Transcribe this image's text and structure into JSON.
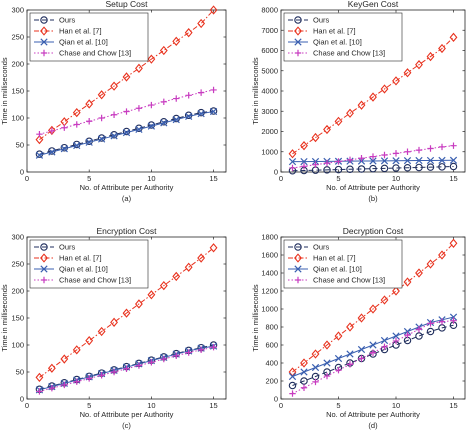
{
  "colors": {
    "Ours": "#1f2d5c",
    "Han et al. [7]": "#e8321e",
    "Qian et al. [10]": "#3a5fb0",
    "Chase and Chow [13]": "#c83cc0"
  },
  "chart_data": [
    {
      "type": "line",
      "title": "Setup Cost",
      "xlabel": "No. of Attribute per Authority",
      "ylabel": "Time in milliseconds",
      "caption": "(a)",
      "xlim": [
        0,
        16
      ],
      "ylim": [
        0,
        300
      ],
      "xticks": [
        0,
        5,
        10,
        15
      ],
      "yticks": [
        0,
        50,
        100,
        150,
        200,
        250,
        300
      ],
      "legend_position": "top-left",
      "x": [
        1,
        2,
        3,
        4,
        5,
        6,
        7,
        8,
        9,
        10,
        11,
        12,
        13,
        14,
        15
      ],
      "series": [
        {
          "name": "Ours",
          "values": [
            33,
            39,
            45,
            51,
            57,
            63,
            69,
            75,
            81,
            87,
            93,
            99,
            105,
            110,
            113
          ]
        },
        {
          "name": "Han et al. [7]",
          "values": [
            60,
            77,
            93,
            110,
            126,
            143,
            159,
            176,
            192,
            209,
            225,
            242,
            258,
            275,
            300
          ]
        },
        {
          "name": "Qian et al. [10]",
          "values": [
            31,
            37,
            43,
            49,
            55,
            61,
            67,
            73,
            79,
            85,
            91,
            97,
            103,
            108,
            112
          ]
        },
        {
          "name": "Chase and Chow [13]",
          "values": [
            70,
            76,
            82,
            88,
            94,
            100,
            106,
            112,
            118,
            124,
            130,
            136,
            142,
            147,
            152
          ]
        }
      ]
    },
    {
      "type": "line",
      "title": "KeyGen Cost",
      "xlabel": "No. of Attribute per Authority",
      "ylabel": "Time in milliseconds",
      "caption": "(b)",
      "xlim": [
        0,
        16
      ],
      "ylim": [
        0,
        8000
      ],
      "xticks": [
        0,
        5,
        10,
        15
      ],
      "yticks": [
        0,
        1000,
        2000,
        3000,
        4000,
        5000,
        6000,
        7000,
        8000
      ],
      "legend_position": "top-left",
      "x": [
        1,
        2,
        3,
        4,
        5,
        6,
        7,
        8,
        9,
        10,
        11,
        12,
        13,
        14,
        15
      ],
      "series": [
        {
          "name": "Ours",
          "values": [
            60,
            75,
            90,
            105,
            120,
            135,
            150,
            165,
            180,
            195,
            210,
            225,
            240,
            255,
            270
          ]
        },
        {
          "name": "Han et al. [7]",
          "values": [
            900,
            1300,
            1700,
            2100,
            2500,
            2900,
            3300,
            3700,
            4100,
            4500,
            4900,
            5300,
            5700,
            6100,
            6650
          ]
        },
        {
          "name": "Qian et al. [10]",
          "values": [
            510,
            515,
            520,
            525,
            530,
            535,
            540,
            545,
            550,
            555,
            560,
            565,
            570,
            575,
            580
          ]
        },
        {
          "name": "Chase and Chow [13]",
          "values": [
            200,
            280,
            360,
            440,
            520,
            600,
            680,
            760,
            840,
            920,
            1000,
            1080,
            1160,
            1240,
            1300
          ]
        }
      ]
    },
    {
      "type": "line",
      "title": "Encryption Cost",
      "xlabel": "No. of Attribute per Authority",
      "ylabel": "Time in milliseconds",
      "caption": "(c)",
      "xlim": [
        0,
        16
      ],
      "ylim": [
        0,
        300
      ],
      "xticks": [
        0,
        5,
        10,
        15
      ],
      "yticks": [
        0,
        50,
        100,
        150,
        200,
        250,
        300
      ],
      "legend_position": "top-left",
      "x": [
        1,
        2,
        3,
        4,
        5,
        6,
        7,
        8,
        9,
        10,
        11,
        12,
        13,
        14,
        15
      ],
      "series": [
        {
          "name": "Ours",
          "values": [
            18,
            24,
            30,
            36,
            42,
            48,
            54,
            60,
            66,
            72,
            78,
            84,
            90,
            95,
            100
          ]
        },
        {
          "name": "Han et al. [7]",
          "values": [
            40,
            57,
            74,
            91,
            108,
            125,
            142,
            159,
            176,
            193,
            210,
            227,
            244,
            261,
            280
          ]
        },
        {
          "name": "Qian et al. [10]",
          "values": [
            17,
            23,
            29,
            35,
            41,
            47,
            53,
            59,
            65,
            71,
            77,
            83,
            89,
            94,
            98
          ]
        },
        {
          "name": "Chase and Chow [13]",
          "values": [
            14,
            20,
            26,
            32,
            38,
            44,
            50,
            56,
            62,
            68,
            74,
            80,
            86,
            91,
            96
          ]
        }
      ]
    },
    {
      "type": "line",
      "title": "Decryption Cost",
      "xlabel": "No. of Attribute per Authority",
      "ylabel": "Time in milliseconds",
      "caption": "(d)",
      "xlim": [
        0,
        16
      ],
      "ylim": [
        0,
        1800
      ],
      "xticks": [
        0,
        5,
        10,
        15
      ],
      "yticks": [
        0,
        200,
        400,
        600,
        800,
        1000,
        1200,
        1400,
        1600,
        1800
      ],
      "legend_position": "top-left",
      "x": [
        1,
        2,
        3,
        4,
        5,
        6,
        7,
        8,
        9,
        10,
        11,
        12,
        13,
        14,
        15
      ],
      "series": [
        {
          "name": "Ours",
          "values": [
            150,
            200,
            250,
            300,
            350,
            400,
            450,
            500,
            550,
            600,
            650,
            700,
            750,
            790,
            820
          ]
        },
        {
          "name": "Han et al. [7]",
          "values": [
            300,
            400,
            500,
            600,
            700,
            800,
            900,
            1000,
            1100,
            1200,
            1300,
            1400,
            1500,
            1600,
            1730
          ]
        },
        {
          "name": "Qian et al. [10]",
          "values": [
            250,
            300,
            350,
            400,
            450,
            500,
            550,
            600,
            650,
            700,
            750,
            800,
            850,
            880,
            910
          ]
        },
        {
          "name": "Chase and Chow [13]",
          "values": [
            60,
            125,
            190,
            255,
            320,
            385,
            450,
            515,
            580,
            645,
            710,
            775,
            840,
            860,
            870
          ]
        }
      ]
    }
  ]
}
